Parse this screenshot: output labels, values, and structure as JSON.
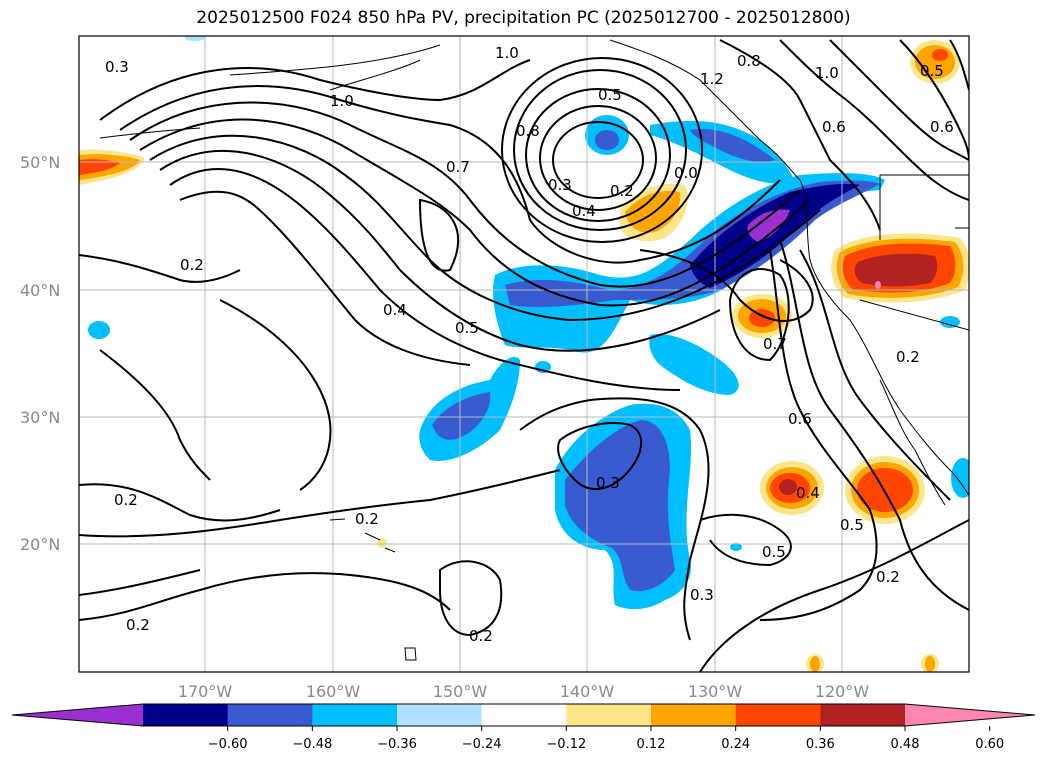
{
  "title": "2025012500 F024 850 hPa PV, precipitation PC (2025012700 - 2025012800)",
  "map": {
    "lat_labels": [
      "50°N",
      "40°N",
      "30°N",
      "20°N"
    ],
    "lon_labels": [
      "170°W",
      "160°W",
      "150°W",
      "140°W",
      "130°W",
      "120°W"
    ],
    "contour_labels": [
      "0.3",
      "1.0",
      "1.0",
      "0.8",
      "1.2",
      "1.0",
      "0.6",
      "0.6",
      "0.5",
      "0.5",
      "0.8",
      "0.7",
      "0.3",
      "0.4",
      "0.2",
      "0.0",
      "0.2",
      "0.4",
      "0.5",
      "0.7",
      "0.6",
      "0.2",
      "0.2",
      "0.3",
      "0.4",
      "0.5",
      "0.5",
      "0.2",
      "0.2",
      "0.2",
      "0.3",
      "0.2"
    ]
  },
  "colorbar": {
    "ticks": [
      "−0.60",
      "−0.48",
      "−0.36",
      "−0.24",
      "−0.12",
      "0.12",
      "0.24",
      "0.36",
      "0.48",
      "0.60"
    ],
    "colors": [
      "#9b30d0",
      "#00008b",
      "#3a5bcf",
      "#00bfff",
      "#b0e2ff",
      "#ffffff",
      "#fde68a",
      "#ffa500",
      "#ff4500",
      "#b22222",
      "#ff85b3"
    ]
  }
}
